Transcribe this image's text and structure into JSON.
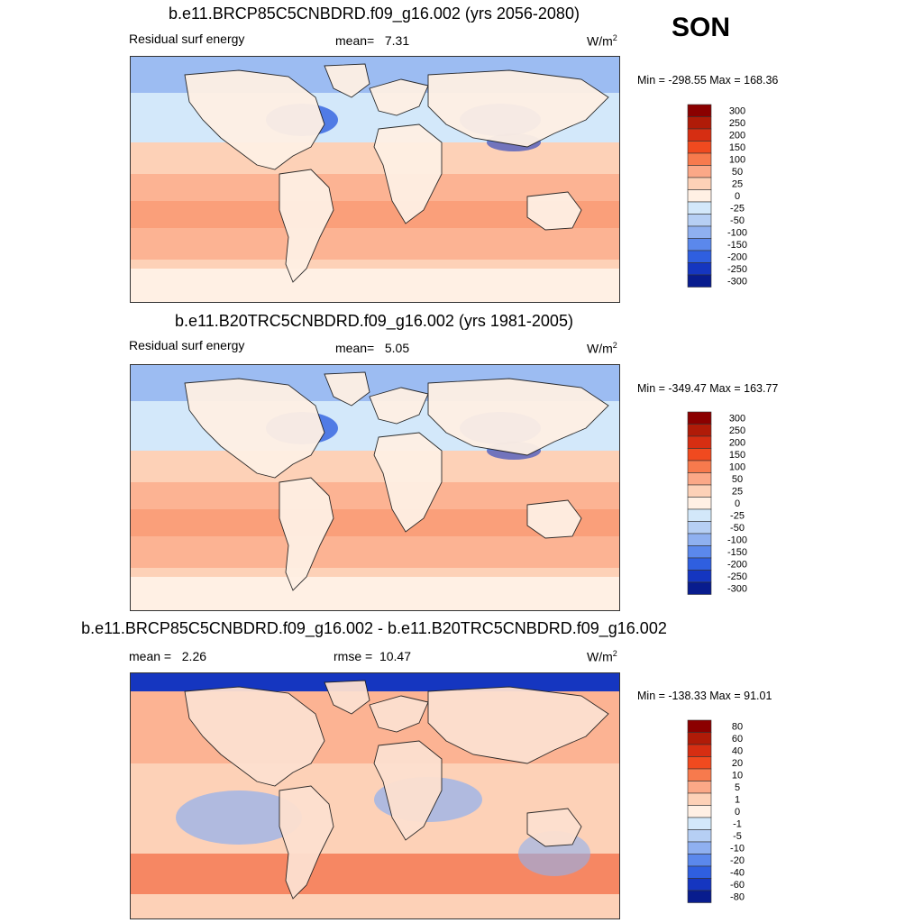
{
  "season": "SON",
  "chart_data": [
    {
      "type": "heatmap",
      "title": "b.e11.BRCP85C5CNBDRD.f09_g16.002 (yrs 2056-2080)",
      "left_label": "Residual surf energy",
      "stat_label": "mean=",
      "stat_value": "7.31",
      "units_base": "W/m",
      "units_exp": "2",
      "min_max": "Min = -298.55 Max = 168.36",
      "min": -298.55,
      "max": 168.36,
      "mean": 7.31,
      "colorbar_levels": [
        "300",
        "250",
        "200",
        "150",
        "100",
        "50",
        "25",
        "0",
        "-25",
        "-50",
        "-100",
        "-150",
        "-200",
        "-250",
        "-300"
      ]
    },
    {
      "type": "heatmap",
      "title": "b.e11.B20TRC5CNBDRD.f09_g16.002 (yrs 1981-2005)",
      "left_label": "Residual surf energy",
      "stat_label": "mean=",
      "stat_value": "5.05",
      "units_base": "W/m",
      "units_exp": "2",
      "min_max": "Min = -349.47 Max = 163.77",
      "min": -349.47,
      "max": 163.77,
      "mean": 5.05,
      "colorbar_levels": [
        "300",
        "250",
        "200",
        "150",
        "100",
        "50",
        "25",
        "0",
        "-25",
        "-50",
        "-100",
        "-150",
        "-200",
        "-250",
        "-300"
      ]
    },
    {
      "type": "heatmap",
      "title": "b.e11.BRCP85C5CNBDRD.f09_g16.002 - b.e11.B20TRC5CNBDRD.f09_g16.002",
      "mean_label": "mean =",
      "mean_value": "2.26",
      "rmse_label": "rmse =",
      "rmse_value": "10.47",
      "units_base": "W/m",
      "units_exp": "2",
      "min_max": "Min = -138.33 Max =  91.01",
      "min": -138.33,
      "max": 91.01,
      "mean": 2.26,
      "rmse": 10.47,
      "colorbar_levels": [
        "80",
        "60",
        "40",
        "20",
        "10",
        "5",
        "1",
        "0",
        "-1",
        "-5",
        "-10",
        "-20",
        "-40",
        "-60",
        "-80"
      ]
    }
  ],
  "colorbar_colors": [
    "#8b0000",
    "#b01b08",
    "#d62e12",
    "#f04a1f",
    "#f77a4d",
    "#fba887",
    "#fdd1b7",
    "#fff0e4",
    "#d3e8fa",
    "#b6cff4",
    "#8fb0f0",
    "#5b88ec",
    "#2f5fe0",
    "#1536c0",
    "#081c8e"
  ],
  "colors": {
    "ocean_warm": "#fba887",
    "ocean_light": "#fdd1b7",
    "ocean_pale": "#fff0e4",
    "cool_light": "#d3e8fa",
    "cool_mid": "#8fb0f0",
    "cool_strong": "#2f5fe0",
    "cool_deep": "#1536c0",
    "coast": "#222222"
  }
}
